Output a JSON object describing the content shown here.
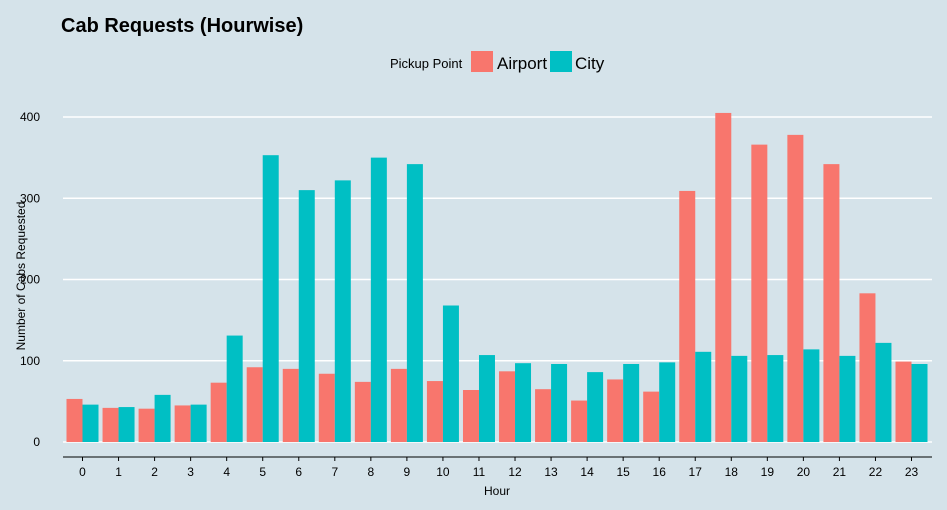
{
  "colors": {
    "background": "#d5e3ea",
    "grid": "#ffffff",
    "airport": "#f8766d",
    "city": "#00bfc4"
  },
  "chart_data": {
    "type": "bar",
    "title": "Cab Requests (Hourwise)",
    "xlabel": "Hour",
    "ylabel": "Number of Cabs Requested",
    "legend_title": "Pickup Point",
    "legend_position": "top-center",
    "grid": true,
    "ylim": [
      0,
      410
    ],
    "yticks": [
      0,
      100,
      200,
      300,
      400
    ],
    "categories": [
      "0",
      "1",
      "2",
      "3",
      "4",
      "5",
      "6",
      "7",
      "8",
      "9",
      "10",
      "11",
      "12",
      "13",
      "14",
      "15",
      "16",
      "17",
      "18",
      "19",
      "20",
      "21",
      "22",
      "23"
    ],
    "series": [
      {
        "name": "Airport",
        "color": "#f8766d",
        "values": [
          53,
          42,
          41,
          45,
          73,
          92,
          90,
          84,
          74,
          90,
          75,
          64,
          87,
          65,
          51,
          77,
          62,
          309,
          405,
          366,
          378,
          342,
          183,
          99
        ]
      },
      {
        "name": "City",
        "color": "#00bfc4",
        "values": [
          46,
          43,
          58,
          46,
          131,
          353,
          310,
          322,
          350,
          342,
          168,
          107,
          97,
          96,
          86,
          96,
          98,
          111,
          106,
          107,
          114,
          106,
          122,
          96
        ]
      }
    ]
  }
}
